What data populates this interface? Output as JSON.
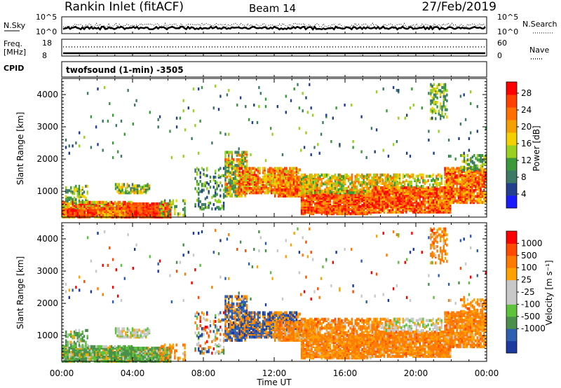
{
  "header": {
    "station": "Rankin Inlet (fitACF)",
    "beam": "Beam 14",
    "date": "27/Feb/2019"
  },
  "status_panel": {
    "nsky_label": "N.Sky",
    "nsky_ticks": [
      "10^5",
      "10^0"
    ],
    "nsearch_label": "N.Search",
    "nsearch_ticks": [
      "10^5",
      "10^0"
    ],
    "freq_label_line1": "Freq.",
    "freq_label_line2": "[MHz]",
    "freq_ticks": [
      "18",
      "8"
    ],
    "nave_label": "Nave",
    "nave_ticks": [
      "60",
      "0"
    ],
    "cpid_label": "CPID",
    "cpid_value": "twofsound (1-min) -3505"
  },
  "time_axis": {
    "title": "Time UT",
    "ticks": [
      "00:00",
      "04:00",
      "08:00",
      "12:00",
      "16:00",
      "20:00",
      "00:00"
    ]
  },
  "colors": {
    "power_scale": [
      "#1a1aff",
      "#23408f",
      "#3c7a66",
      "#3a9a3a",
      "#9ad020",
      "#f5d000",
      "#f5a000",
      "#ff7000",
      "#ff4000",
      "#ff0000"
    ],
    "velocity_scale": [
      "#1a3aa0",
      "#2d5fb0",
      "#4a8f4a",
      "#5cc33a",
      "#c8c8c8",
      "#c8c8c8",
      "#ffa200",
      "#ff7a00",
      "#ff4a00",
      "#ff0000"
    ]
  },
  "chart_data": [
    {
      "type": "heatmap",
      "name": "power-panel",
      "ylabel": "Slant Range [km]",
      "yticks": [
        "1000",
        "2000",
        "3000",
        "4000"
      ],
      "ylim": [
        200,
        4500
      ],
      "colorbar_label": "Power [dB]",
      "colorbar_ticks": [
        "4",
        "8",
        "12",
        "16",
        "20",
        "24",
        "28"
      ],
      "colorbar_range": [
        0,
        30
      ]
    },
    {
      "type": "heatmap",
      "name": "velocity-panel",
      "ylabel": "Slant Range [km]",
      "yticks": [
        "1000",
        "2000",
        "3000",
        "4000"
      ],
      "ylim": [
        200,
        4500
      ],
      "colorbar_label": "Velocity [m s⁻¹]",
      "colorbar_ticks": [
        "1000",
        "500",
        "100",
        "25",
        "-25",
        "-100",
        "-500",
        "-1000"
      ]
    }
  ]
}
